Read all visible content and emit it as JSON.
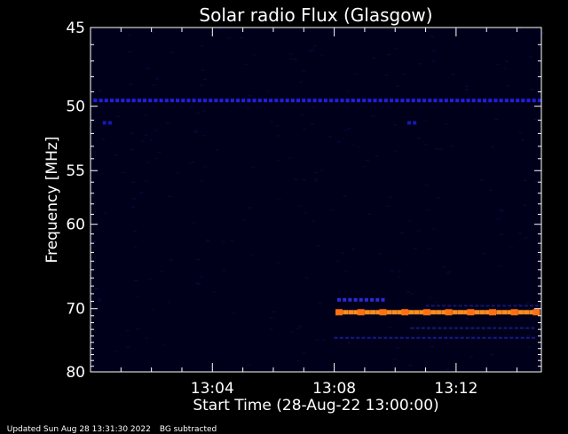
{
  "chart_data": {
    "type": "heatmap",
    "title": "Solar radio Flux (Glasgow)",
    "xlabel": "Start Time (28-Aug-22 13:00:00)",
    "ylabel": "Frequency [MHz]",
    "x_range_minutes": [
      0,
      14.8
    ],
    "y_range_mhz": [
      45,
      80
    ],
    "y_ticks": [
      45,
      50,
      55,
      60,
      70,
      80
    ],
    "x_ticks": [
      {
        "minute": 4,
        "label": "13:04"
      },
      {
        "minute": 8,
        "label": "13:08"
      },
      {
        "minute": 12,
        "label": "13:12"
      }
    ],
    "background": "subtracted",
    "bands": [
      {
        "freq": 49.6,
        "start": 0.1,
        "end": 14.8,
        "level": "low",
        "color": "#2020e0"
      },
      {
        "freq": 51.2,
        "start": 0.4,
        "end": 0.6,
        "level": "low",
        "color": "#1818b0"
      },
      {
        "freq": 51.2,
        "start": 10.4,
        "end": 10.6,
        "level": "low",
        "color": "#1818b0"
      },
      {
        "freq": 68.8,
        "start": 8.1,
        "end": 9.6,
        "level": "low",
        "color": "#2a2ad8"
      },
      {
        "freq": 69.6,
        "start": 11.0,
        "end": 14.6,
        "level": "faint",
        "color": "#14146a"
      },
      {
        "freq": 70.5,
        "start": 8.1,
        "end": 14.6,
        "level": "high",
        "color": "#ff8c20"
      },
      {
        "freq": 72.8,
        "start": 10.5,
        "end": 14.6,
        "level": "faint",
        "color": "#18187a"
      },
      {
        "freq": 74.3,
        "start": 8.0,
        "end": 14.6,
        "level": "faint",
        "color": "#1a1a90"
      }
    ]
  },
  "footer": {
    "updated": "Updated Sun Aug 28 13:31:30 2022",
    "bg_note": "BG subtracted"
  },
  "colors": {
    "background": "#000000",
    "plot_background": "#00001a",
    "axis": "#ffffff"
  }
}
